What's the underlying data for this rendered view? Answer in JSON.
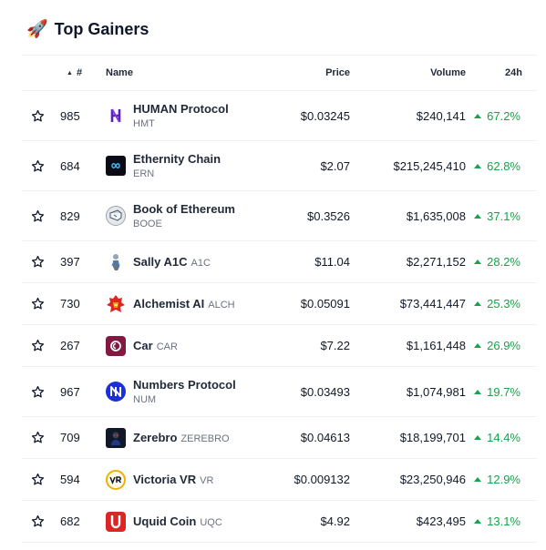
{
  "header": {
    "icon": "rocket-icon",
    "icon_glyph": "🚀",
    "title": "Top Gainers"
  },
  "columns": {
    "rank": "#",
    "name": "Name",
    "price": "Price",
    "volume": "Volume",
    "change": "24h"
  },
  "colors": {
    "positive": "#16a34a"
  },
  "rows": [
    {
      "rank": "985",
      "name": "HUMAN Protocol",
      "symbol": "HMT",
      "price": "$0.03245",
      "volume": "$240,141",
      "change": "67.2%",
      "logo": "human-protocol-logo"
    },
    {
      "rank": "684",
      "name": "Ethernity Chain",
      "symbol": "ERN",
      "price": "$2.07",
      "volume": "$215,245,410",
      "change": "62.8%",
      "logo": "ethernity-chain-logo"
    },
    {
      "rank": "829",
      "name": "Book of Ethereum",
      "symbol": "BOOE",
      "price": "$0.3526",
      "volume": "$1,635,008",
      "change": "37.1%",
      "logo": "book-of-ethereum-logo"
    },
    {
      "rank": "397",
      "name": "Sally A1C",
      "symbol": "A1C",
      "price": "$11.04",
      "volume": "$2,271,152",
      "change": "28.2%",
      "logo": "sally-a1c-logo"
    },
    {
      "rank": "730",
      "name": "Alchemist AI",
      "symbol": "ALCH",
      "price": "$0.05091",
      "volume": "$73,441,447",
      "change": "25.3%",
      "logo": "alchemist-ai-logo"
    },
    {
      "rank": "267",
      "name": "Car",
      "symbol": "CAR",
      "price": "$7.22",
      "volume": "$1,161,448",
      "change": "26.9%",
      "logo": "car-logo"
    },
    {
      "rank": "967",
      "name": "Numbers Protocol",
      "symbol": "NUM",
      "price": "$0.03493",
      "volume": "$1,074,981",
      "change": "19.7%",
      "logo": "numbers-protocol-logo"
    },
    {
      "rank": "709",
      "name": "Zerebro",
      "symbol": "ZEREBRO",
      "price": "$0.04613",
      "volume": "$18,199,701",
      "change": "14.4%",
      "logo": "zerebro-logo"
    },
    {
      "rank": "594",
      "name": "Victoria VR",
      "symbol": "VR",
      "price": "$0.009132",
      "volume": "$23,250,946",
      "change": "12.9%",
      "logo": "victoria-vr-logo"
    },
    {
      "rank": "682",
      "name": "Uquid Coin",
      "symbol": "UQC",
      "price": "$4.92",
      "volume": "$423,495",
      "change": "13.1%",
      "logo": "uquid-coin-logo"
    }
  ]
}
